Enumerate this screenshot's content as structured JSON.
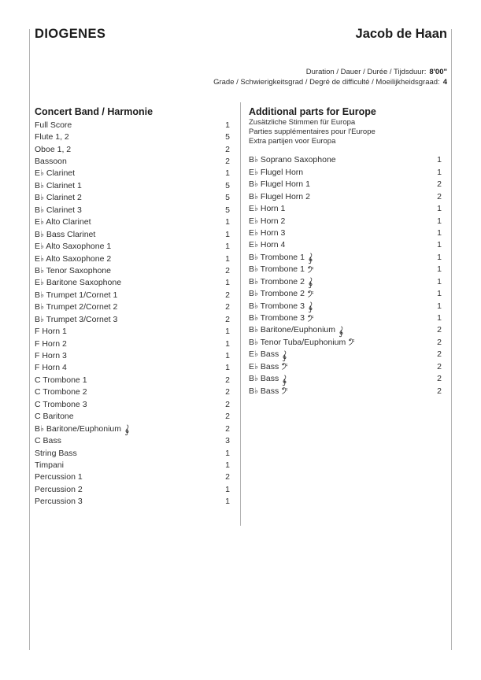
{
  "page": {
    "title": "DIOGENES",
    "composer": "Jacob de Haan",
    "duration_label": "Duration / Dauer / Durée / Tijdsduur:",
    "duration_value": "8'00\"",
    "grade_label": "Grade / Schwierigkeitsgrad / Degré de difficulté / Moeilijkheidsgraad:",
    "grade_value": "4"
  },
  "left_section": {
    "heading": "Concert Band / Harmonie",
    "items": [
      {
        "name": "Full Score",
        "qty": "1"
      },
      {
        "name": "Flute 1, 2",
        "qty": "5"
      },
      {
        "name": "Oboe 1, 2",
        "qty": "2"
      },
      {
        "name": "Bassoon",
        "qty": "2"
      },
      {
        "name": "E♭ Clarinet",
        "qty": "1"
      },
      {
        "name": "B♭ Clarinet 1",
        "qty": "5"
      },
      {
        "name": "B♭ Clarinet 2",
        "qty": "5"
      },
      {
        "name": "B♭ Clarinet 3",
        "qty": "5"
      },
      {
        "name": "E♭ Alto Clarinet",
        "qty": "1"
      },
      {
        "name": "B♭ Bass Clarinet",
        "qty": "1"
      },
      {
        "name": "E♭ Alto Saxophone 1",
        "qty": "1"
      },
      {
        "name": "E♭ Alto Saxophone 2",
        "qty": "1"
      },
      {
        "name": "B♭ Tenor Saxophone",
        "qty": "2"
      },
      {
        "name": "E♭ Baritone Saxophone",
        "qty": "1"
      },
      {
        "name": "B♭ Trumpet 1/Cornet 1",
        "qty": "2"
      },
      {
        "name": "B♭ Trumpet 2/Cornet 2",
        "qty": "2"
      },
      {
        "name": "B♭ Trumpet 3/Cornet 3",
        "qty": "2"
      },
      {
        "name": "F Horn 1",
        "qty": "1"
      },
      {
        "name": "F Horn 2",
        "qty": "1"
      },
      {
        "name": "F Horn 3",
        "qty": "1"
      },
      {
        "name": "F Horn 4",
        "qty": "1"
      },
      {
        "name": "C Trombone 1",
        "qty": "2"
      },
      {
        "name": "C Trombone 2",
        "qty": "2"
      },
      {
        "name": "C Trombone 3",
        "qty": "2"
      },
      {
        "name": "C Baritone",
        "qty": "2"
      },
      {
        "name": "B♭ Baritone/Euphonium",
        "clef": "treble",
        "qty": "2"
      },
      {
        "name": "C Bass",
        "qty": "3"
      },
      {
        "name": "String Bass",
        "qty": "1"
      },
      {
        "name": "Timpani",
        "qty": "1"
      },
      {
        "name": "Percussion 1",
        "qty": "2"
      },
      {
        "name": "Percussion 2",
        "qty": "1"
      },
      {
        "name": "Percussion 3",
        "qty": "1"
      }
    ]
  },
  "right_section": {
    "heading": "Additional parts for Europe",
    "subheadings": [
      "Zusätzliche Stimmen für Europa",
      "Parties supplémentaires pour l'Europe",
      "Extra partijen voor Europa"
    ],
    "items": [
      {
        "name": "B♭ Soprano Saxophone",
        "qty": "1"
      },
      {
        "name": "E♭ Flugel Horn",
        "qty": "1"
      },
      {
        "name": "B♭ Flugel Horn 1",
        "qty": "2"
      },
      {
        "name": "B♭ Flugel Horn 2",
        "qty": "2"
      },
      {
        "name": "E♭ Horn 1",
        "qty": "1"
      },
      {
        "name": "E♭ Horn 2",
        "qty": "1"
      },
      {
        "name": "E♭ Horn 3",
        "qty": "1"
      },
      {
        "name": "E♭ Horn 4",
        "qty": "1"
      },
      {
        "name": "B♭ Trombone 1",
        "clef": "treble",
        "qty": "1"
      },
      {
        "name": "B♭ Trombone 1",
        "clef": "bass",
        "qty": "1"
      },
      {
        "name": "B♭ Trombone 2",
        "clef": "treble",
        "qty": "1"
      },
      {
        "name": "B♭ Trombone 2",
        "clef": "bass",
        "qty": "1"
      },
      {
        "name": "B♭ Trombone 3",
        "clef": "treble",
        "qty": "1"
      },
      {
        "name": "B♭ Trombone 3",
        "clef": "bass",
        "qty": "1"
      },
      {
        "name": "B♭ Baritone/Euphonium",
        "clef": "treble",
        "qty": "2"
      },
      {
        "name": "B♭ Tenor Tuba/Euphonium",
        "clef": "bass",
        "qty": "2"
      },
      {
        "name": "E♭ Bass",
        "clef": "treble",
        "qty": "2"
      },
      {
        "name": "E♭ Bass",
        "clef": "bass",
        "qty": "2"
      },
      {
        "name": "B♭ Bass",
        "clef": "treble",
        "qty": "2"
      },
      {
        "name": "B♭ Bass",
        "clef": "bass",
        "qty": "2"
      }
    ]
  }
}
